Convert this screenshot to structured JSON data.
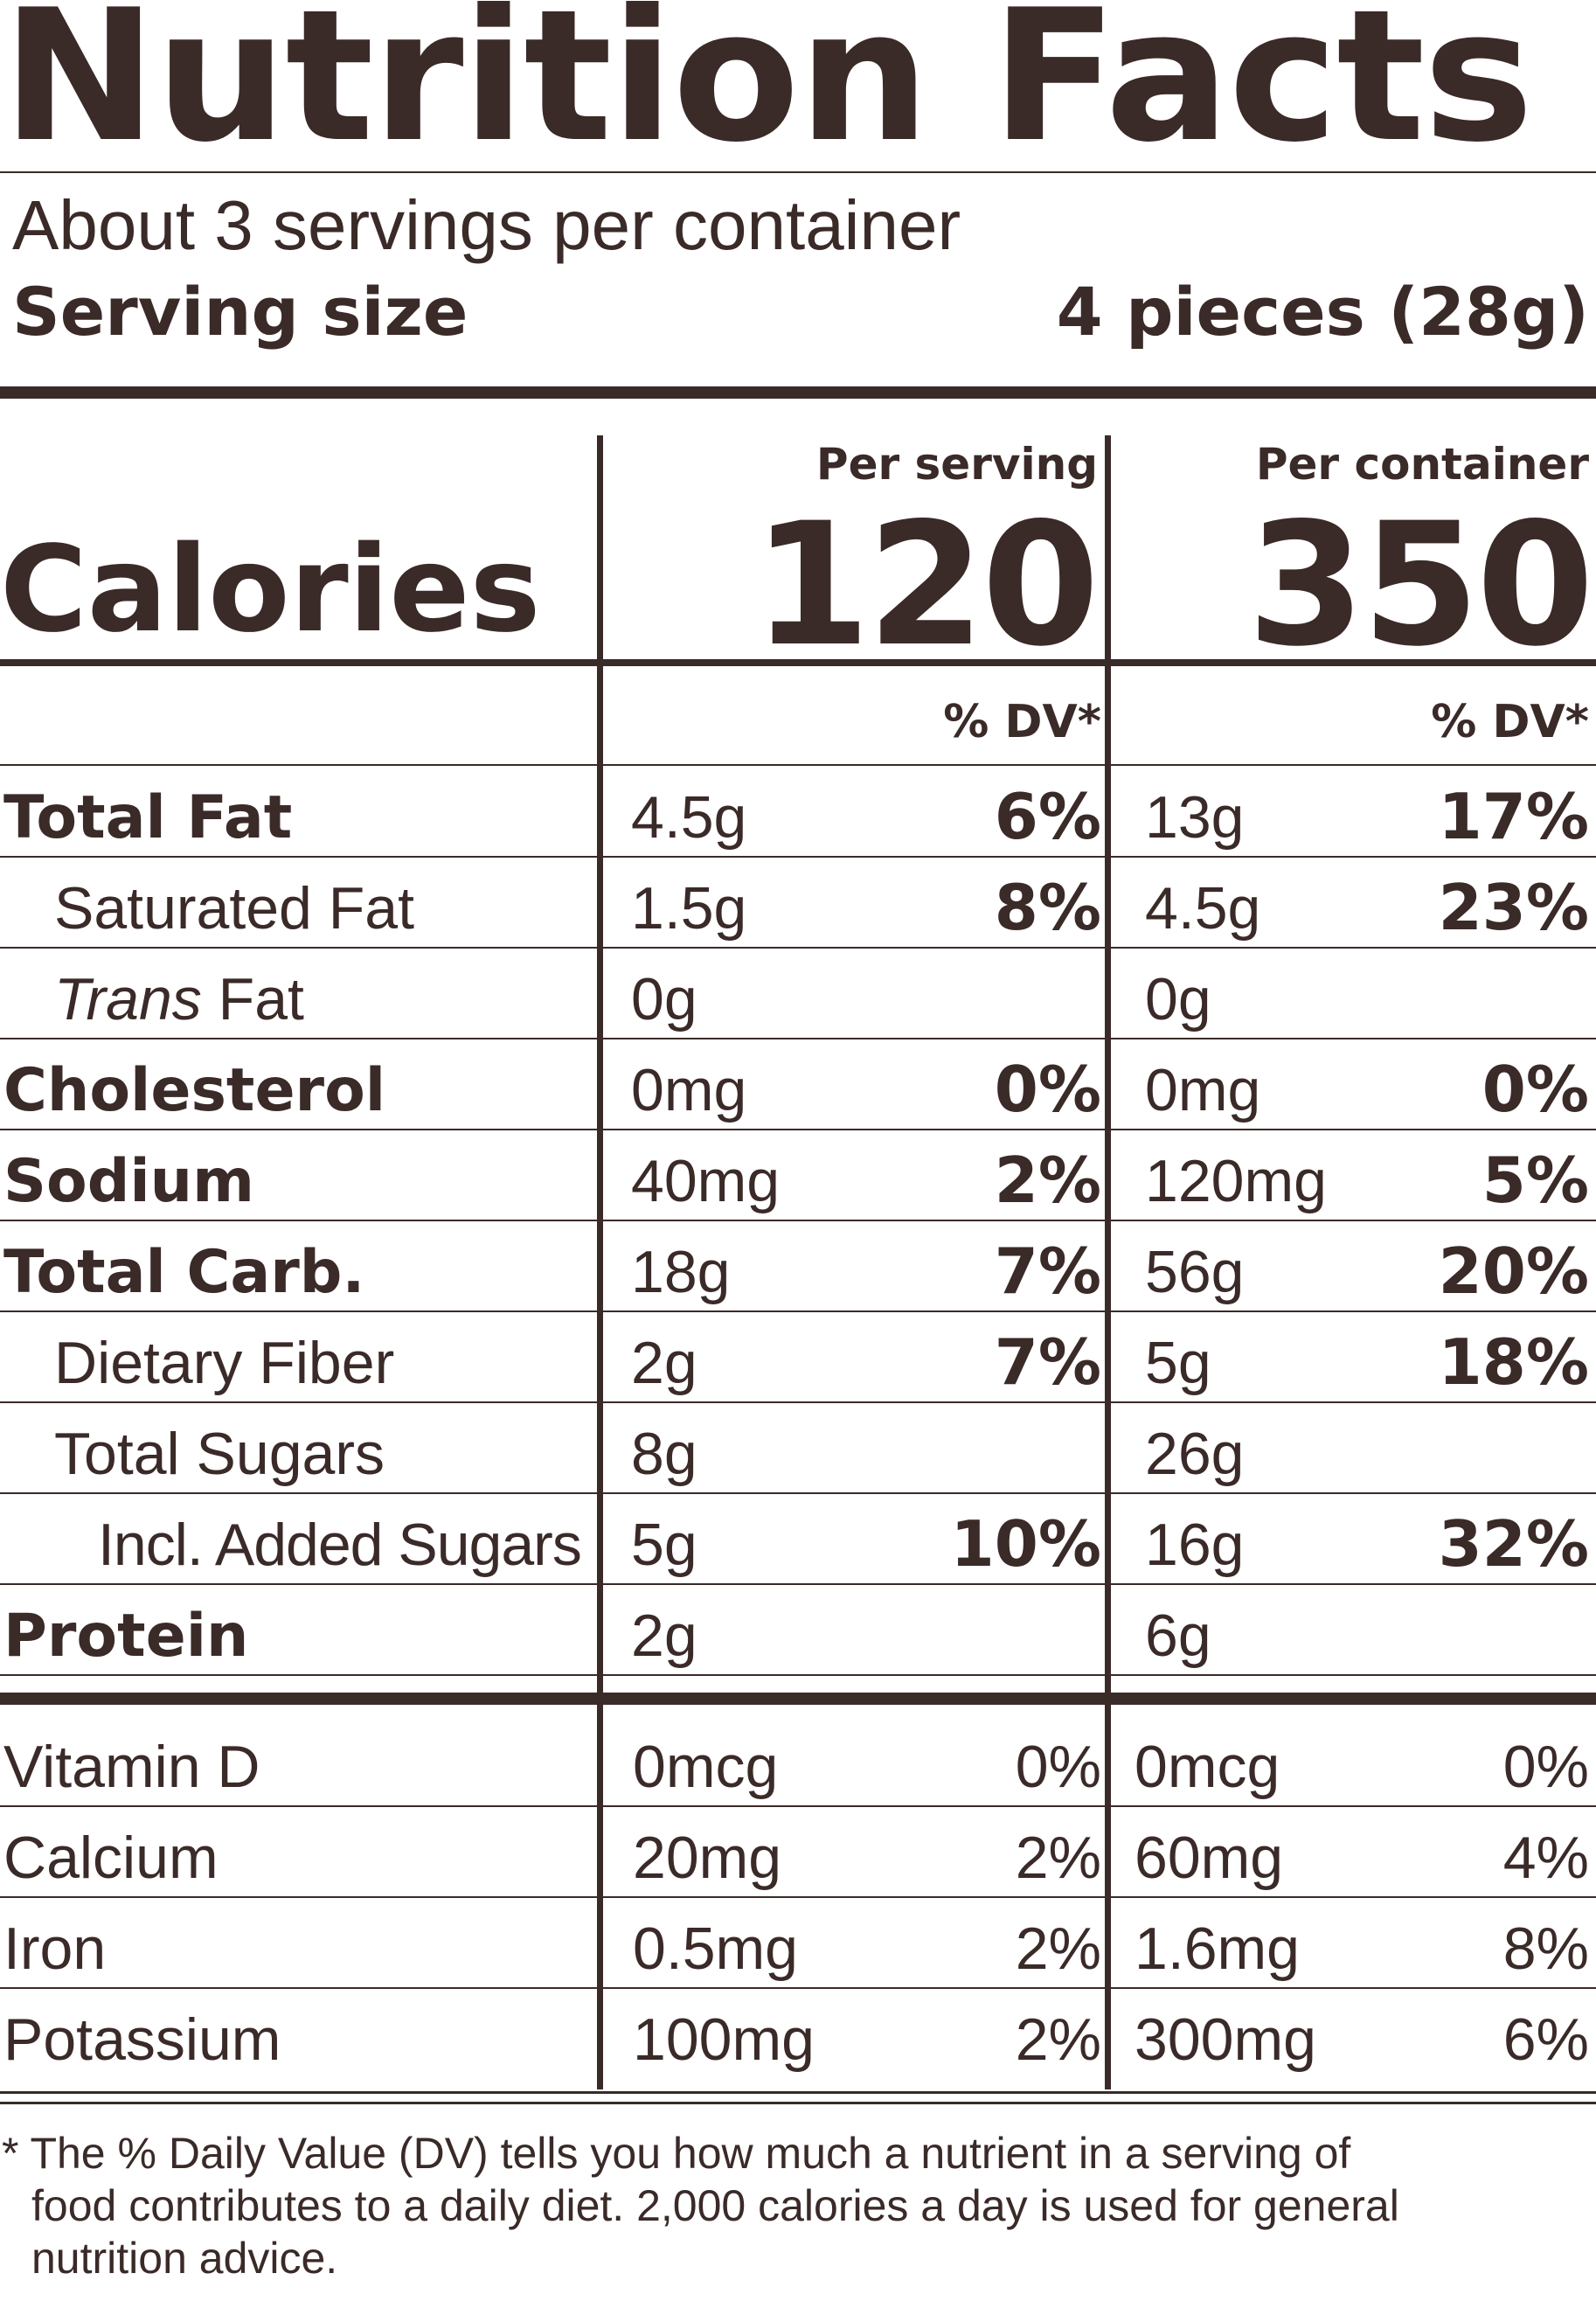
{
  "label": {
    "title": "Nutrition Facts",
    "servings_per_container": "About 3 servings per container",
    "serving_size_label": "Serving size",
    "serving_size_value": "4 pieces (28g)",
    "calories_label": "Calories",
    "per_serving_header": "Per serving",
    "per_container_header": "Per container",
    "calories_per_serving": "120",
    "calories_per_container": "350",
    "dv_header": "% DV*",
    "color_text": "#3a2a28"
  },
  "nutrients": [
    {
      "name": "Total Fat",
      "serving": "4.5g",
      "serving_dv": "6%",
      "container": "13g",
      "container_dv": "17%"
    },
    {
      "name": "Saturated Fat",
      "serving": "1.5g",
      "serving_dv": "8%",
      "container": "4.5g",
      "container_dv": "23%"
    },
    {
      "name_italic": "Trans",
      "name_rest": " Fat",
      "serving": "0g",
      "serving_dv": "",
      "container": "0g",
      "container_dv": ""
    },
    {
      "name": "Cholesterol",
      "serving": "0mg",
      "serving_dv": "0%",
      "container": "0mg",
      "container_dv": "0%"
    },
    {
      "name": "Sodium",
      "serving": "40mg",
      "serving_dv": "2%",
      "container": "120mg",
      "container_dv": "5%"
    },
    {
      "name": "Total Carb.",
      "serving": "18g",
      "serving_dv": "7%",
      "container": "56g",
      "container_dv": "20%"
    },
    {
      "name": "Dietary Fiber",
      "serving": "2g",
      "serving_dv": "7%",
      "container": "5g",
      "container_dv": "18%"
    },
    {
      "name": "Total Sugars",
      "serving": "8g",
      "serving_dv": "",
      "container": "26g",
      "container_dv": ""
    },
    {
      "name": "Incl. Added Sugars",
      "serving": "5g",
      "serving_dv": "10%",
      "container": "16g",
      "container_dv": "32%"
    },
    {
      "name": "Protein",
      "serving": "2g",
      "serving_dv": "",
      "container": "6g",
      "container_dv": ""
    }
  ],
  "vitamins": [
    {
      "name": "Vitamin D",
      "serving": "0mcg",
      "serving_dv": "0%",
      "container": "0mcg",
      "container_dv": "0%"
    },
    {
      "name": "Calcium",
      "serving": "20mg",
      "serving_dv": "2%",
      "container": "60mg",
      "container_dv": "4%"
    },
    {
      "name": "Iron",
      "serving": "0.5mg",
      "serving_dv": "2%",
      "container": "1.6mg",
      "container_dv": "8%"
    },
    {
      "name": "Potassium",
      "serving": "100mg",
      "serving_dv": "2%",
      "container": "300mg",
      "container_dv": "6%"
    }
  ],
  "footnote": {
    "line1": "* The % Daily Value (DV) tells you how much a nutrient in a serving of",
    "line2": "food contributes to a daily diet. 2,000 calories a day is used for general",
    "line3": "nutrition advice."
  }
}
